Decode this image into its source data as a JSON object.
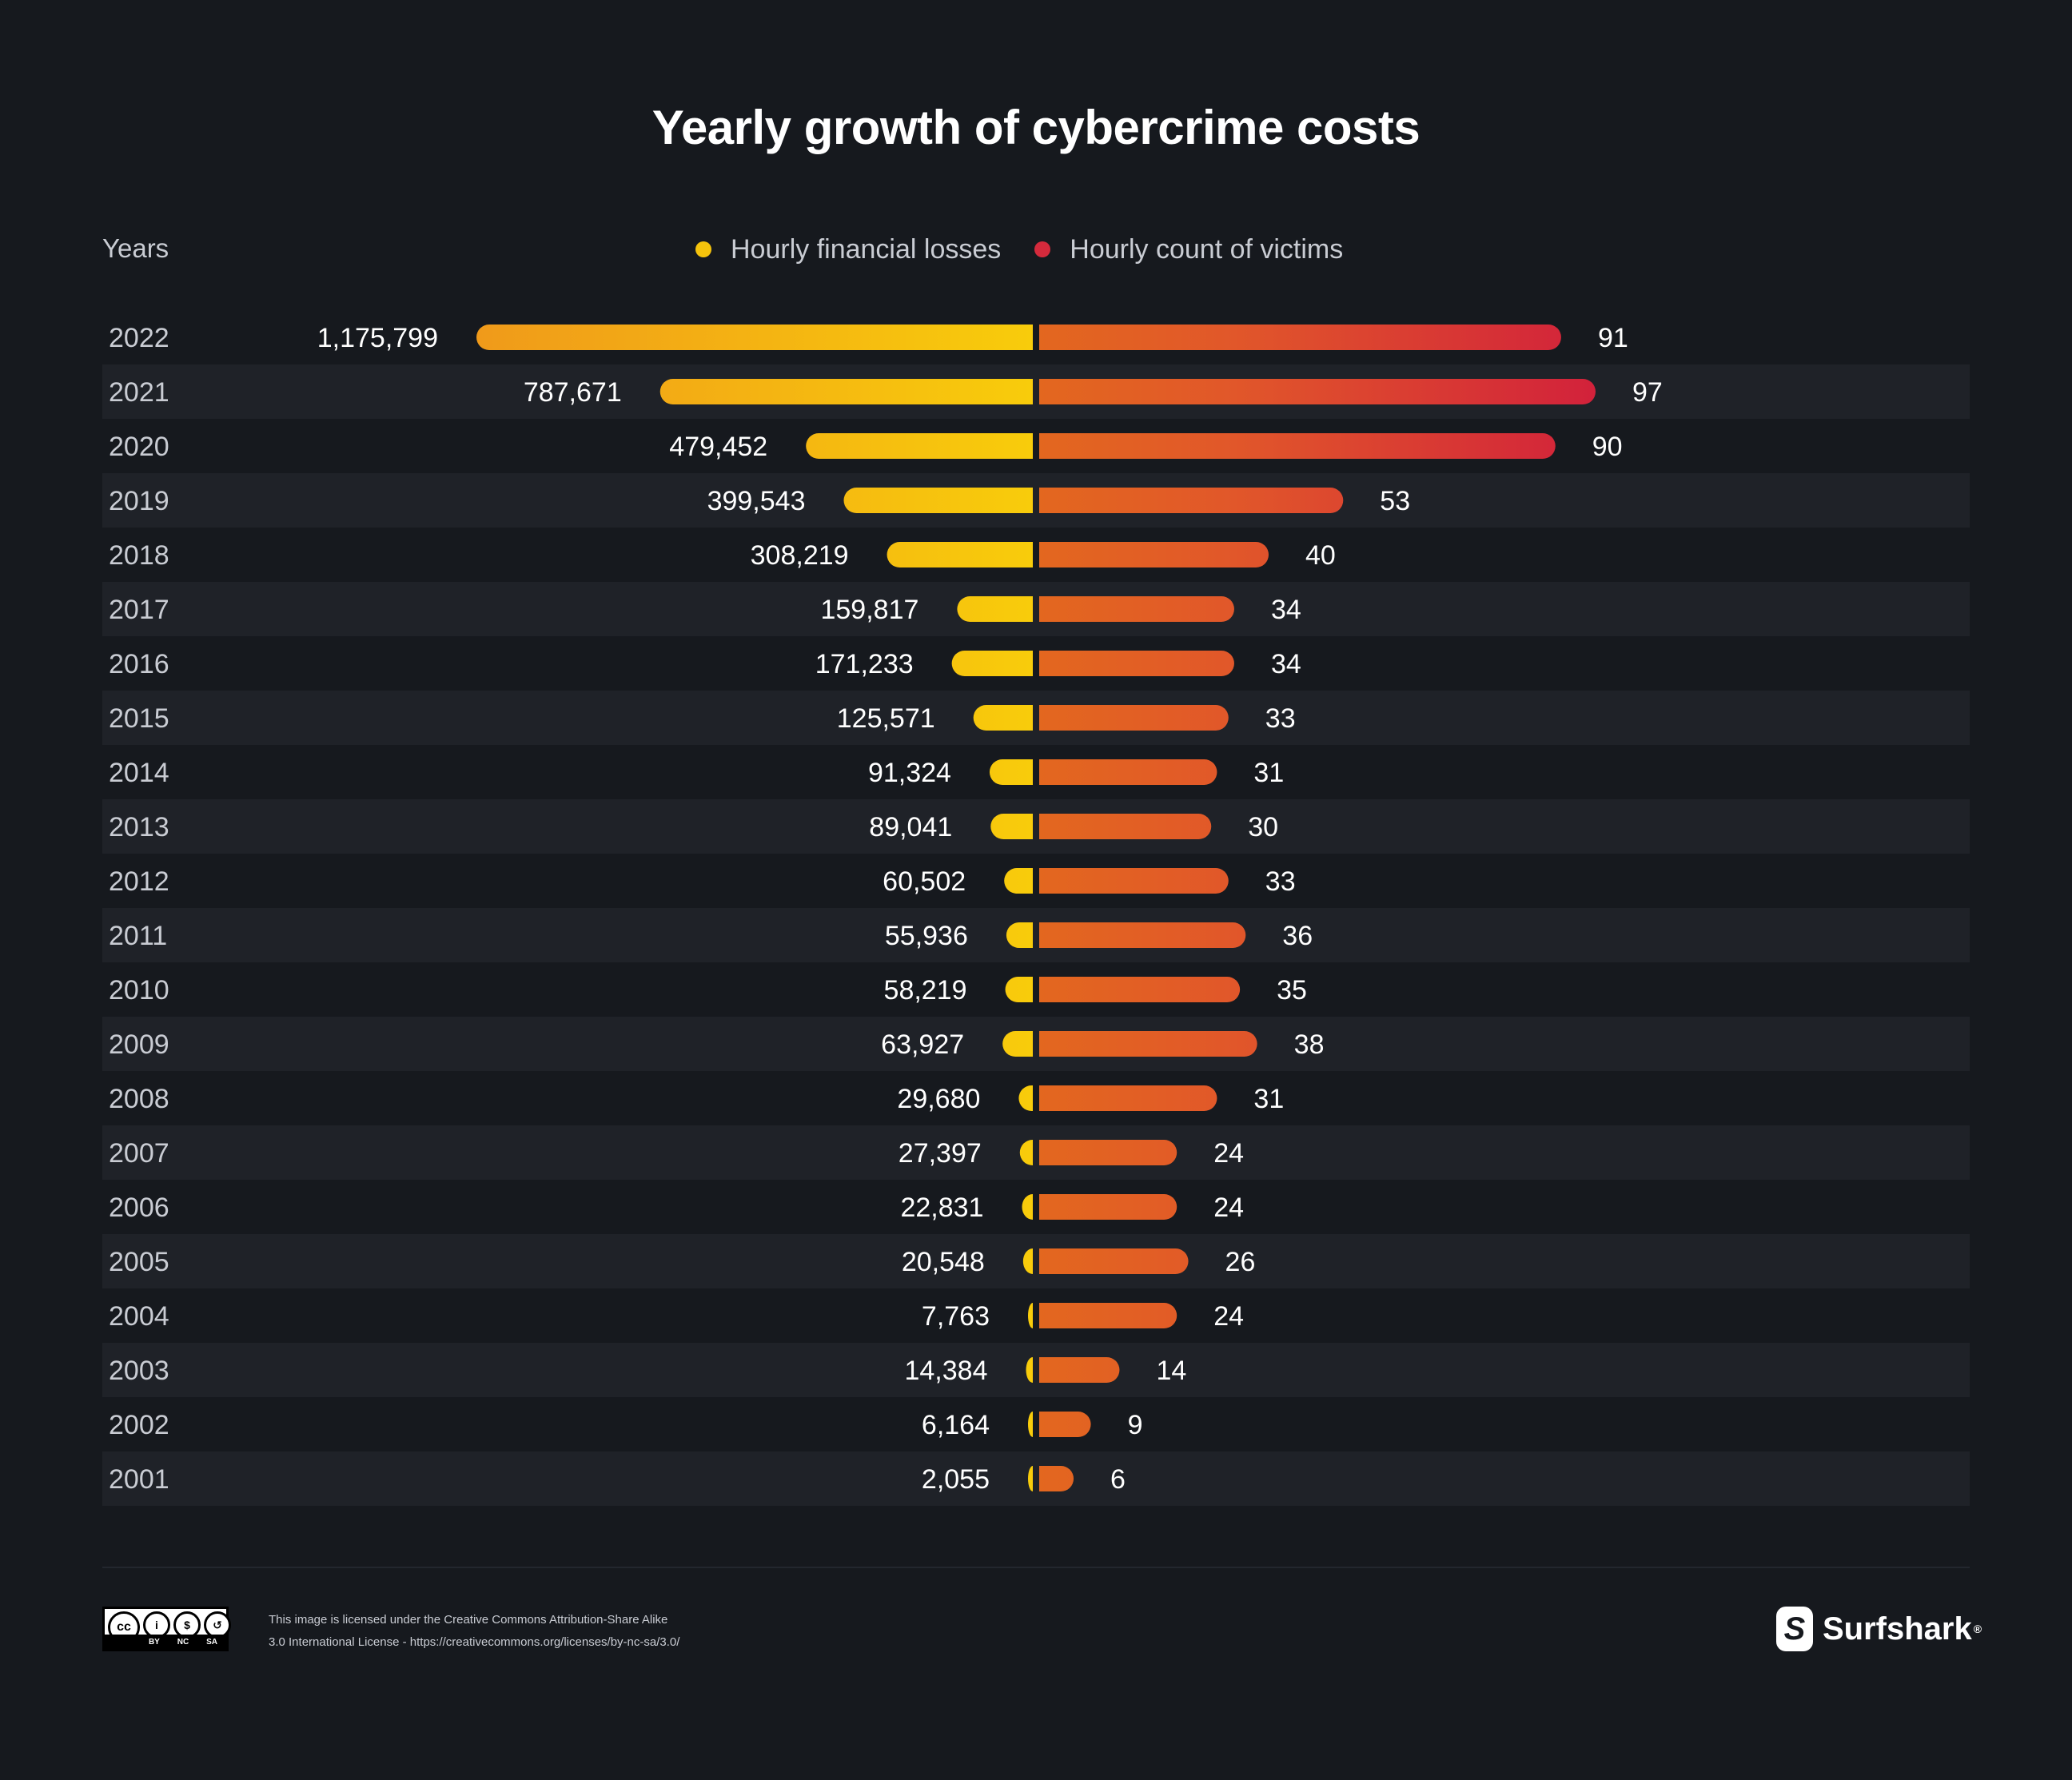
{
  "title": "Yearly growth of cybercrime costs",
  "years_header": "Years",
  "legend": [
    {
      "label": "Hourly financial losses",
      "color": "#f5c30c"
    },
    {
      "label": "Hourly count of victims",
      "color": "#d42a3c"
    }
  ],
  "footer": {
    "license_line1": "This image is licensed under the Creative Commons Attribution-Share Alike",
    "license_line2": "3.0 International License - https://creativecommons.org/licenses/by-nc-sa/3.0/",
    "cc_labels": [
      "BY",
      "NC",
      "SA"
    ],
    "brand": "Surfshark"
  },
  "chart_data": {
    "type": "bar",
    "orientation": "horizontal-diverging",
    "categories": [
      "2022",
      "2021",
      "2020",
      "2019",
      "2018",
      "2017",
      "2016",
      "2015",
      "2014",
      "2013",
      "2012",
      "2011",
      "2010",
      "2009",
      "2008",
      "2007",
      "2006",
      "2005",
      "2004",
      "2003",
      "2002",
      "2001"
    ],
    "series": [
      {
        "name": "Hourly financial losses",
        "direction": "left",
        "values": [
          1175799,
          787671,
          479452,
          399543,
          308219,
          159817,
          171233,
          125571,
          91324,
          89041,
          60502,
          55936,
          58219,
          63927,
          29680,
          27397,
          22831,
          20548,
          7763,
          14384,
          6164,
          2055
        ],
        "labels": [
          "1,175,799",
          "787,671",
          "479,452",
          "399,543",
          "308,219",
          "159,817",
          "171,233",
          "125,571",
          "91,324",
          "89,041",
          "60,502",
          "55,936",
          "58,219",
          "63,927",
          "29,680",
          "27,397",
          "22,831",
          "20,548",
          "7,763",
          "14,384",
          "6,164",
          "2,055"
        ]
      },
      {
        "name": "Hourly count of victims",
        "direction": "right",
        "values": [
          91,
          97,
          90,
          53,
          40,
          34,
          34,
          33,
          31,
          30,
          33,
          36,
          35,
          38,
          31,
          24,
          24,
          26,
          24,
          14,
          9,
          6
        ],
        "labels": [
          "91",
          "97",
          "90",
          "53",
          "40",
          "34",
          "34",
          "33",
          "31",
          "30",
          "33",
          "36",
          "35",
          "38",
          "31",
          "24",
          "24",
          "26",
          "24",
          "14",
          "9",
          "6"
        ]
      }
    ],
    "grid": false,
    "legend_position": "top-center"
  }
}
